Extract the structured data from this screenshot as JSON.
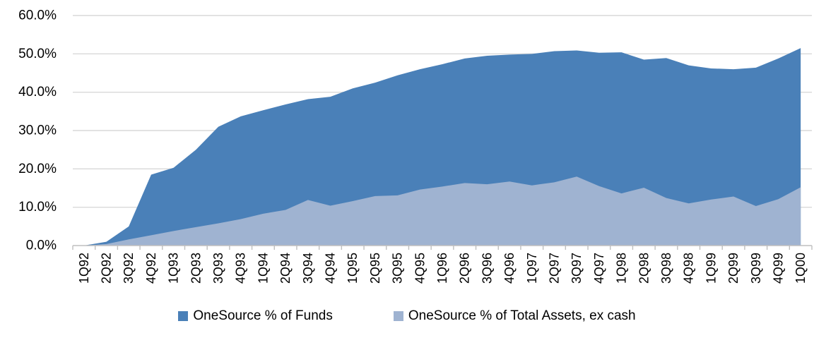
{
  "chart_data": {
    "type": "area",
    "mode": "overlapping",
    "title": "",
    "xlabel": "",
    "ylabel": "",
    "ylim": [
      0,
      60
    ],
    "y_tick_interval": 10,
    "y_tick_labels": [
      "0.0%",
      "10.0%",
      "20.0%",
      "30.0%",
      "40.0%",
      "50.0%",
      "60.0%"
    ],
    "grid": true,
    "legend_position": "bottom",
    "categories": [
      "1Q92",
      "2Q92",
      "3Q92",
      "4Q92",
      "1Q93",
      "2Q93",
      "3Q93",
      "4Q93",
      "1Q94",
      "2Q94",
      "3Q94",
      "4Q94",
      "1Q95",
      "2Q95",
      "3Q95",
      "4Q95",
      "1Q96",
      "2Q96",
      "3Q96",
      "4Q96",
      "1Q97",
      "2Q97",
      "3Q97",
      "4Q97",
      "1Q98",
      "2Q98",
      "3Q98",
      "4Q98",
      "1Q99",
      "2Q99",
      "3Q99",
      "4Q99",
      "1Q00"
    ],
    "series": [
      {
        "name": "OneSource % of Funds",
        "color": "#4A80B8",
        "values": [
          0.0,
          1.0,
          5.0,
          18.5,
          20.3,
          25.0,
          31.0,
          33.7,
          35.3,
          36.8,
          38.2,
          38.8,
          41.0,
          42.5,
          44.4,
          46.0,
          47.3,
          48.8,
          49.5,
          49.8,
          50.0,
          50.7,
          50.9,
          50.3,
          50.4,
          48.5,
          48.9,
          47.0,
          46.2,
          46.0,
          46.4,
          48.8,
          51.5
        ]
      },
      {
        "name": "OneSource % of Total Assets, ex cash",
        "color": "#9FB3D1",
        "values": [
          0.0,
          0.4,
          1.6,
          2.7,
          3.8,
          4.8,
          5.8,
          6.9,
          8.3,
          9.3,
          11.9,
          10.4,
          11.6,
          12.9,
          13.1,
          14.6,
          15.4,
          16.3,
          16.0,
          16.7,
          15.7,
          16.5,
          18.0,
          15.5,
          13.6,
          15.1,
          12.4,
          11.0,
          12.0,
          12.8,
          10.3,
          12.1,
          15.2
        ]
      }
    ]
  },
  "legend": {
    "items": [
      {
        "label": "OneSource % of Funds",
        "color": "#4A80B8"
      },
      {
        "label": "OneSource % of Total Assets, ex cash",
        "color": "#9FB3D1"
      }
    ]
  },
  "colors": {
    "background": "#FFFFFF",
    "gridline": "#D9D9D9",
    "axis": "#BFBFBF",
    "tick": "#BFBFBF",
    "label_text": "#000000"
  }
}
